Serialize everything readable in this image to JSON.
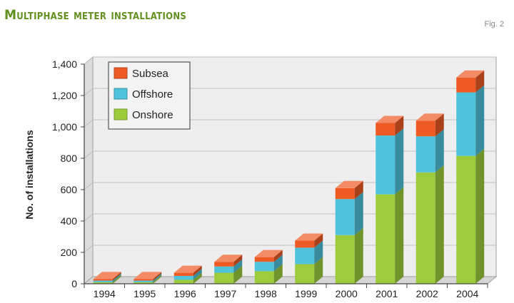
{
  "header": {
    "title": "Multiphase meter installations",
    "fig_label": "Fig. 2"
  },
  "colors": {
    "subsea": "#ee5a24",
    "offshore": "#4fc3dc",
    "onshore": "#9ccc3c",
    "title": "#62901f",
    "grid": "#bdbdbd",
    "plot_bg": "#eeeeee",
    "legend_bg": "#f3f3f3",
    "legend_border": "#555555"
  },
  "chart_data": {
    "type": "bar",
    "stacked": true,
    "three_d": true,
    "categories": [
      "1994",
      "1995",
      "1996",
      "1997",
      "1998",
      "1999",
      "2000",
      "2001",
      "2002",
      "2004"
    ],
    "series": [
      {
        "name": "Onshore",
        "color": "#9ccc3c",
        "values": [
          10,
          10,
          25,
          70,
          80,
          125,
          310,
          570,
          710,
          815
        ]
      },
      {
        "name": "Offshore",
        "color": "#4fc3dc",
        "values": [
          10,
          10,
          25,
          40,
          60,
          105,
          230,
          375,
          230,
          405
        ]
      },
      {
        "name": "Subsea",
        "color": "#ee5a24",
        "values": [
          10,
          10,
          20,
          30,
          30,
          45,
          70,
          80,
          100,
          95
        ]
      }
    ],
    "legend_order": [
      "Subsea",
      "Offshore",
      "Onshore"
    ],
    "ylabel": "No. of installations",
    "yticks": [
      "0",
      "200",
      "400",
      "600",
      "800",
      "1,000",
      "1,200",
      "1,400"
    ],
    "ylim": [
      0,
      1400
    ],
    "grid": true,
    "legend_position": "top-left"
  }
}
